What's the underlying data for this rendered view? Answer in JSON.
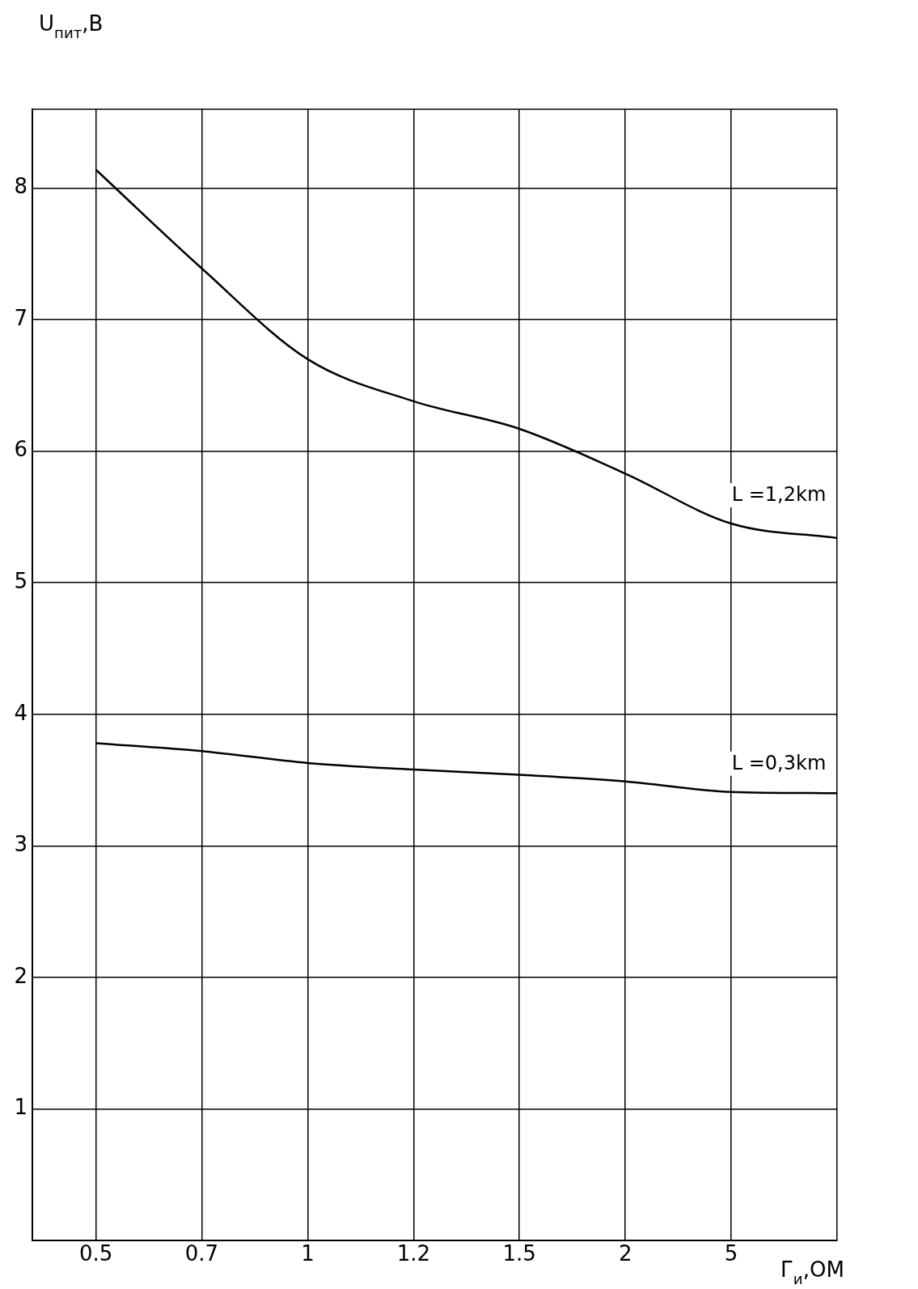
{
  "chart_data": {
    "type": "line",
    "xlabel": "Г$_{и}$,ОМ",
    "ylabel": "U$_{пит}$,В",
    "categories": [
      "0.5",
      "0.7",
      "1",
      "1.2",
      "1.5",
      "2",
      "5",
      null
    ],
    "series": [
      {
        "name": "L =1,2km",
        "color": "#000000",
        "values": [
          8.14,
          7.39,
          6.7,
          6.38,
          6.17,
          5.83,
          5.45,
          5.34
        ]
      },
      {
        "name": "L =0,3km",
        "color": "#000000",
        "values": [
          3.78,
          3.72,
          3.63,
          3.58,
          3.54,
          3.49,
          3.41,
          3.4
        ]
      }
    ],
    "ylim": [
      0,
      8.6
    ],
    "yticks": [
      1,
      2,
      3,
      4,
      5,
      6,
      7,
      8
    ],
    "grid": true,
    "legend": false,
    "marker": "none",
    "line_style": "solid"
  }
}
